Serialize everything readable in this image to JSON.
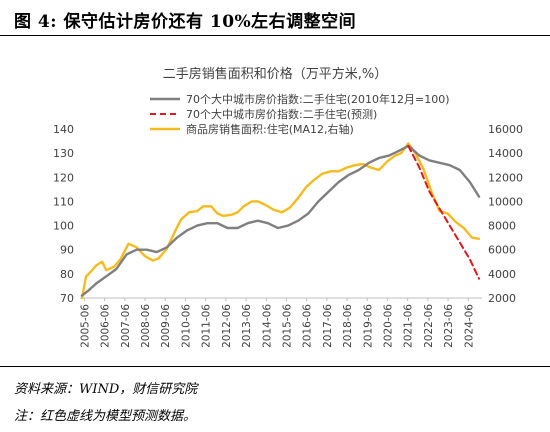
{
  "caption": "图 4: 保守估计房价还有 10%左右调整空间",
  "source_note": "资料来源：WIND，财信研究院",
  "footnote": "注：红色虚线为模型预测数据。",
  "chart_data": {
    "type": "line",
    "title": "二手房销售面积和价格（万平方米,%）",
    "x_tick_labels": [
      "2005-06",
      "2006-06",
      "2007-06",
      "2008-06",
      "2009-06",
      "2010-06",
      "2011-06",
      "2012-06",
      "2013-06",
      "2014-06",
      "2015-06",
      "2016-06",
      "2017-06",
      "2018-06",
      "2019-06",
      "2020-06",
      "2021-06",
      "2022-06",
      "2023-06",
      "2024-06"
    ],
    "x_range": [
      2005.2,
      2025.1
    ],
    "y_left": {
      "range": [
        70,
        140
      ],
      "ticks": [
        70,
        80,
        90,
        100,
        110,
        120,
        130,
        140
      ]
    },
    "y_right": {
      "range": [
        2000,
        16000
      ],
      "ticks": [
        2000,
        4000,
        6000,
        8000,
        10000,
        12000,
        14000,
        16000
      ]
    },
    "grid": false,
    "legend_position": "top-left",
    "series": [
      {
        "name": "70个大中城市房价指数:二手住宅(2010年12月=100)",
        "axis": "left",
        "color": "#7f7f7f",
        "style": "solid",
        "x": [
          2005.3,
          2005.6,
          2006.0,
          2006.5,
          2007.0,
          2007.5,
          2008.0,
          2008.5,
          2009.0,
          2009.5,
          2010.0,
          2010.5,
          2011.0,
          2011.5,
          2012.0,
          2012.5,
          2013.0,
          2013.5,
          2014.0,
          2014.5,
          2015.0,
          2015.5,
          2016.0,
          2016.5,
          2017.0,
          2017.5,
          2018.0,
          2018.5,
          2019.0,
          2019.5,
          2020.0,
          2020.5,
          2021.0,
          2021.45,
          2021.6,
          2022.0,
          2022.5,
          2023.0,
          2023.5,
          2024.0,
          2024.5,
          2024.95
        ],
        "y": [
          71,
          73,
          76,
          79,
          82,
          88,
          90,
          90,
          89,
          91,
          95,
          98,
          100,
          101,
          101,
          99,
          99,
          101,
          102,
          101,
          99,
          100,
          102,
          105,
          110,
          114,
          118,
          121,
          123,
          126,
          128,
          129,
          131,
          133,
          132,
          129,
          127,
          126,
          125,
          123,
          118,
          112
        ]
      },
      {
        "name": "70个大中城市房价指数:二手住宅(预测)",
        "axis": "left",
        "color": "#e8151b",
        "style": "dashed",
        "x": [
          2021.45,
          2022.0,
          2022.5,
          2023.0,
          2023.5,
          2024.0,
          2024.5,
          2024.95
        ],
        "y": [
          133,
          124,
          114,
          107,
          100,
          93,
          86,
          78
        ]
      },
      {
        "name": "商品房销售面积:住宅(MA12,右轴)",
        "axis": "right",
        "color": "#f7bb1e",
        "style": "solid",
        "x": [
          2005.3,
          2005.5,
          2005.8,
          2006.0,
          2006.3,
          2006.5,
          2006.9,
          2007.2,
          2007.6,
          2008.0,
          2008.4,
          2008.8,
          2009.1,
          2009.5,
          2009.9,
          2010.2,
          2010.6,
          2011.0,
          2011.3,
          2011.7,
          2012.0,
          2012.3,
          2012.7,
          2013.0,
          2013.3,
          2013.7,
          2014.0,
          2014.4,
          2014.8,
          2015.2,
          2015.6,
          2016.0,
          2016.4,
          2016.8,
          2017.2,
          2017.6,
          2018.0,
          2018.4,
          2018.8,
          2019.2,
          2019.6,
          2020.0,
          2020.4,
          2020.8,
          2021.1,
          2021.45,
          2021.8,
          2022.2,
          2022.6,
          2023.0,
          2023.4,
          2023.8,
          2024.2,
          2024.6,
          2024.95
        ],
        "y": [
          2000,
          3800,
          4300,
          4700,
          5000,
          4300,
          4600,
          5200,
          6500,
          6200,
          5500,
          5100,
          5300,
          6100,
          7500,
          8500,
          9100,
          9200,
          9600,
          9600,
          9000,
          8800,
          8900,
          9100,
          9600,
          10000,
          10000,
          9700,
          9300,
          9100,
          9500,
          10300,
          11200,
          11800,
          12300,
          12500,
          12500,
          12800,
          13000,
          13100,
          12800,
          12600,
          13300,
          13800,
          14000,
          14800,
          14000,
          12700,
          10800,
          9200,
          9000,
          8300,
          7800,
          7000,
          6900
        ]
      }
    ]
  }
}
